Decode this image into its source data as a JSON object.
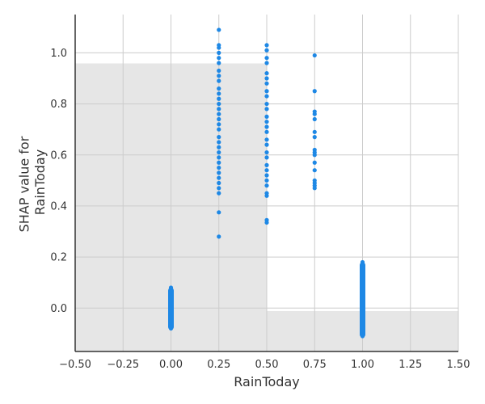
{
  "chart_data": {
    "type": "scatter",
    "title": "",
    "xlabel": "RainToday",
    "ylabel": [
      "SHAP value for",
      "RainToday"
    ],
    "xlim": [
      -0.5,
      1.5
    ],
    "ylim": [
      -0.17,
      1.15
    ],
    "grid": true,
    "x_ticks": [
      -0.5,
      -0.25,
      0.0,
      0.25,
      0.5,
      0.75,
      1.0,
      1.25,
      1.5
    ],
    "x_tick_labels": [
      "−0.50",
      "−0.25",
      "0.00",
      "0.25",
      "0.50",
      "0.75",
      "1.00",
      "1.25",
      "1.50"
    ],
    "y_ticks": [
      0.0,
      0.2,
      0.4,
      0.6,
      0.8,
      1.0
    ],
    "y_tick_labels": [
      "0.0",
      "0.2",
      "0.4",
      "0.6",
      "0.8",
      "1.0"
    ],
    "background_histogram": [
      {
        "x0": -0.5,
        "x1": 0.5,
        "height": 0.855
      },
      {
        "x0": 0.5,
        "x1": 1.5,
        "height": 0.12
      }
    ],
    "point_color": "#1e88e5",
    "hist_color": "#e6e6e6",
    "points": [
      {
        "x": 0.0,
        "y": 0.08
      },
      {
        "x": 0.0,
        "y": 0.06
      },
      {
        "x": 0.0,
        "y": 0.04
      },
      {
        "x": 0.0,
        "y": 0.02
      },
      {
        "x": 0.0,
        "y": 0.0
      },
      {
        "x": 0.0,
        "y": -0.02
      },
      {
        "x": 0.0,
        "y": -0.04
      },
      {
        "x": 0.0,
        "y": -0.06
      },
      {
        "x": 0.0,
        "y": -0.08
      },
      {
        "x": 0.0,
        "y": 0.03
      },
      {
        "x": 0.0,
        "y": -0.01
      },
      {
        "x": 0.0,
        "y": -0.05
      },
      {
        "x": 0.25,
        "y": 1.09
      },
      {
        "x": 0.25,
        "y": 1.03
      },
      {
        "x": 0.25,
        "y": 1.02
      },
      {
        "x": 0.25,
        "y": 1.0
      },
      {
        "x": 0.25,
        "y": 0.98
      },
      {
        "x": 0.25,
        "y": 0.96
      },
      {
        "x": 0.25,
        "y": 0.93
      },
      {
        "x": 0.25,
        "y": 0.91
      },
      {
        "x": 0.25,
        "y": 0.89
      },
      {
        "x": 0.25,
        "y": 0.86
      },
      {
        "x": 0.25,
        "y": 0.84
      },
      {
        "x": 0.25,
        "y": 0.82
      },
      {
        "x": 0.25,
        "y": 0.8
      },
      {
        "x": 0.25,
        "y": 0.78
      },
      {
        "x": 0.25,
        "y": 0.76
      },
      {
        "x": 0.25,
        "y": 0.74
      },
      {
        "x": 0.25,
        "y": 0.72
      },
      {
        "x": 0.25,
        "y": 0.7
      },
      {
        "x": 0.25,
        "y": 0.67
      },
      {
        "x": 0.25,
        "y": 0.65
      },
      {
        "x": 0.25,
        "y": 0.63
      },
      {
        "x": 0.25,
        "y": 0.61
      },
      {
        "x": 0.25,
        "y": 0.59
      },
      {
        "x": 0.25,
        "y": 0.57
      },
      {
        "x": 0.25,
        "y": 0.55
      },
      {
        "x": 0.25,
        "y": 0.53
      },
      {
        "x": 0.25,
        "y": 0.51
      },
      {
        "x": 0.25,
        "y": 0.49
      },
      {
        "x": 0.25,
        "y": 0.47
      },
      {
        "x": 0.25,
        "y": 0.45
      },
      {
        "x": 0.25,
        "y": 0.375
      },
      {
        "x": 0.25,
        "y": 0.28
      },
      {
        "x": 0.5,
        "y": 1.03
      },
      {
        "x": 0.5,
        "y": 1.01
      },
      {
        "x": 0.5,
        "y": 0.98
      },
      {
        "x": 0.5,
        "y": 0.96
      },
      {
        "x": 0.5,
        "y": 0.92
      },
      {
        "x": 0.5,
        "y": 0.9
      },
      {
        "x": 0.5,
        "y": 0.88
      },
      {
        "x": 0.5,
        "y": 0.85
      },
      {
        "x": 0.5,
        "y": 0.83
      },
      {
        "x": 0.5,
        "y": 0.8
      },
      {
        "x": 0.5,
        "y": 0.78
      },
      {
        "x": 0.5,
        "y": 0.75
      },
      {
        "x": 0.5,
        "y": 0.73
      },
      {
        "x": 0.5,
        "y": 0.71
      },
      {
        "x": 0.5,
        "y": 0.69
      },
      {
        "x": 0.5,
        "y": 0.66
      },
      {
        "x": 0.5,
        "y": 0.64
      },
      {
        "x": 0.5,
        "y": 0.61
      },
      {
        "x": 0.5,
        "y": 0.59
      },
      {
        "x": 0.5,
        "y": 0.56
      },
      {
        "x": 0.5,
        "y": 0.54
      },
      {
        "x": 0.5,
        "y": 0.52
      },
      {
        "x": 0.5,
        "y": 0.5
      },
      {
        "x": 0.5,
        "y": 0.48
      },
      {
        "x": 0.5,
        "y": 0.45
      },
      {
        "x": 0.5,
        "y": 0.44
      },
      {
        "x": 0.5,
        "y": 0.345
      },
      {
        "x": 0.5,
        "y": 0.335
      },
      {
        "x": 0.75,
        "y": 0.99
      },
      {
        "x": 0.75,
        "y": 0.85
      },
      {
        "x": 0.75,
        "y": 0.77
      },
      {
        "x": 0.75,
        "y": 0.76
      },
      {
        "x": 0.75,
        "y": 0.74
      },
      {
        "x": 0.75,
        "y": 0.69
      },
      {
        "x": 0.75,
        "y": 0.67
      },
      {
        "x": 0.75,
        "y": 0.62
      },
      {
        "x": 0.75,
        "y": 0.61
      },
      {
        "x": 0.75,
        "y": 0.6
      },
      {
        "x": 0.75,
        "y": 0.57
      },
      {
        "x": 0.75,
        "y": 0.54
      },
      {
        "x": 0.75,
        "y": 0.5
      },
      {
        "x": 0.75,
        "y": 0.49
      },
      {
        "x": 0.75,
        "y": 0.48
      },
      {
        "x": 0.75,
        "y": 0.47
      },
      {
        "x": 1.0,
        "y": 0.18
      },
      {
        "x": 1.0,
        "y": 0.16
      },
      {
        "x": 1.0,
        "y": 0.14
      },
      {
        "x": 1.0,
        "y": 0.12
      },
      {
        "x": 1.0,
        "y": 0.1
      },
      {
        "x": 1.0,
        "y": 0.08
      },
      {
        "x": 1.0,
        "y": 0.06
      },
      {
        "x": 1.0,
        "y": 0.04
      },
      {
        "x": 1.0,
        "y": 0.02
      },
      {
        "x": 1.0,
        "y": 0.0
      },
      {
        "x": 1.0,
        "y": -0.02
      },
      {
        "x": 1.0,
        "y": -0.04
      },
      {
        "x": 1.0,
        "y": -0.06
      },
      {
        "x": 1.0,
        "y": -0.08
      },
      {
        "x": 1.0,
        "y": -0.1
      },
      {
        "x": 1.0,
        "y": -0.11
      }
    ]
  }
}
